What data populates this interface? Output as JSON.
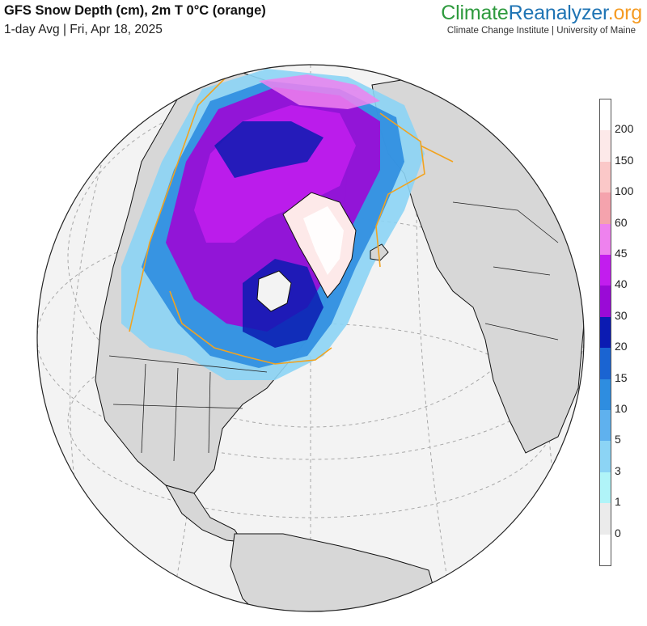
{
  "header": {
    "title": "GFS Snow Depth (cm), 2m T 0°C (orange)",
    "subtitle": "1-day Avg | Fri, Apr 18, 2025"
  },
  "brand": {
    "part_climate": "Climate",
    "part_reanalyzer": "Reanalyzer",
    "part_org": ".org",
    "institution": "Climate Change Institute | University of Maine"
  },
  "legend": {
    "labels": [
      "200",
      "150",
      "100",
      "60",
      "45",
      "40",
      "30",
      "20",
      "15",
      "10",
      "5",
      "3",
      "1",
      "0"
    ],
    "colors": [
      "#ffffff",
      "#fde9e9",
      "#fbc8c8",
      "#f5a3ad",
      "#ee82ee",
      "#c21dee",
      "#9a0ad6",
      "#0b1bb2",
      "#1a64d2",
      "#2e8de0",
      "#5fb1ee",
      "#8cd4f5",
      "#b0f4f8",
      "#ebebeb",
      "#ffffff"
    ]
  },
  "map": {
    "projection": "orthographic",
    "ocean_color": "#f2f2f2",
    "land_color": "#d8d8d8",
    "freezing_line_color": "#f2a31f"
  }
}
